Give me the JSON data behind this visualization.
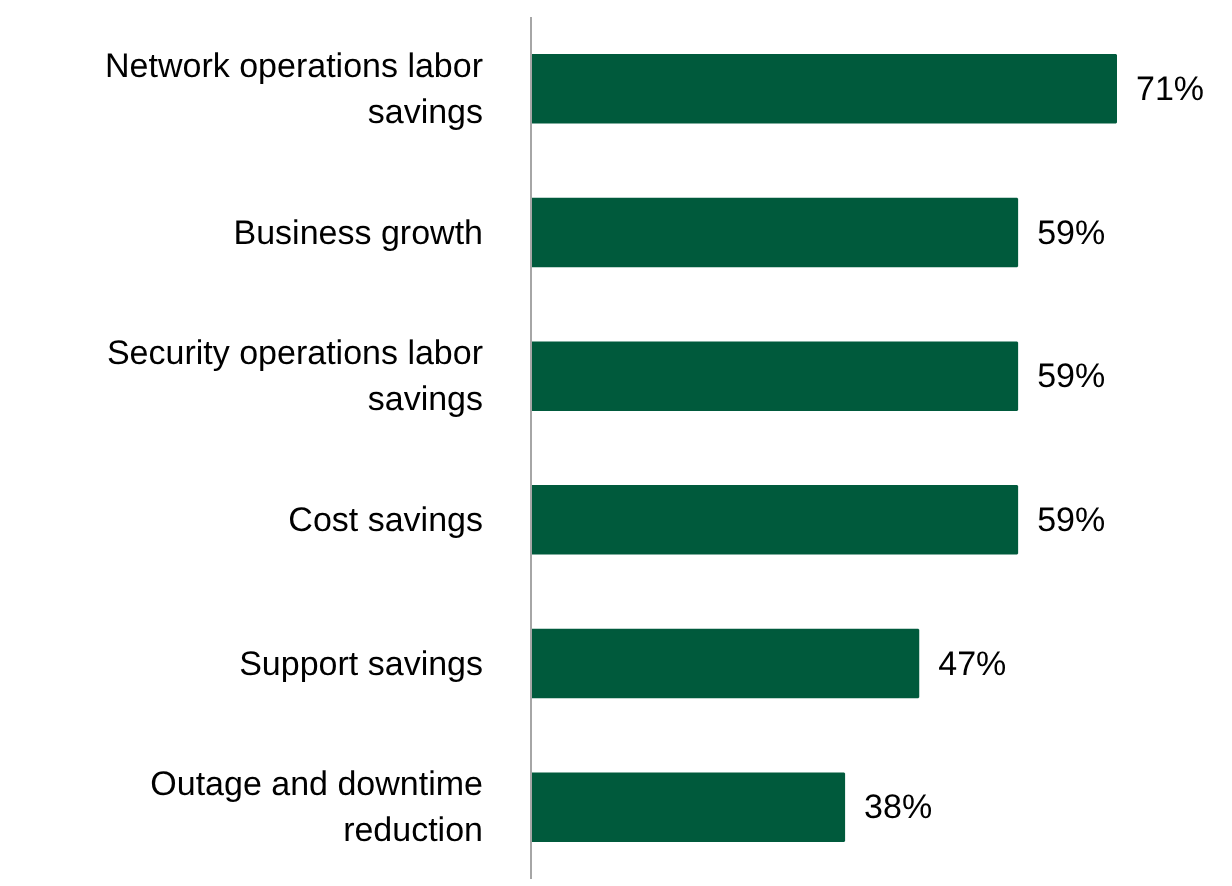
{
  "chart_data": {
    "type": "bar",
    "orientation": "horizontal",
    "categories": [
      "Network operations labor savings",
      "Business growth",
      "Security operations labor savings",
      "Cost savings",
      "Support savings",
      "Outage and downtime reduction"
    ],
    "values": [
      71,
      59,
      59,
      59,
      47,
      38
    ],
    "color": "#005a3c",
    "data_labels": true,
    "value_labels": [
      "71%",
      "59%",
      "59%",
      "59%",
      "47%",
      "38%"
    ],
    "grid": false
  }
}
